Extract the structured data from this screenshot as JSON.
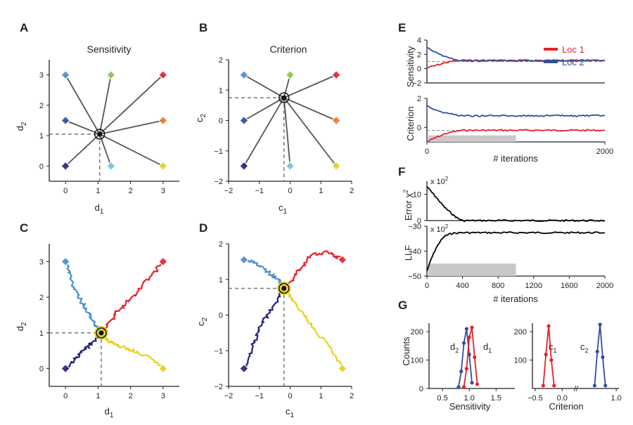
{
  "panels": {
    "A": {
      "letter": "A",
      "title": "Sensitivity",
      "xlabel": "d",
      "xsub": "1",
      "ylabel": "d",
      "ysub": "2"
    },
    "B": {
      "letter": "B",
      "title": "Criterion",
      "xlabel": "c",
      "xsub": "1",
      "ylabel": "c",
      "ysub": "2"
    },
    "C": {
      "letter": "C",
      "xlabel": "d",
      "xsub": "1",
      "ylabel": "d",
      "ysub": "2"
    },
    "D": {
      "letter": "D",
      "xlabel": "c",
      "xsub": "1",
      "ylabel": "c",
      "ysub": "2"
    },
    "E": {
      "letter": "E",
      "ylabel_top": "Sensitivity",
      "ylabel_bottom": "Criterion",
      "xlabel": "# iterations"
    },
    "F": {
      "letter": "F",
      "ylabel_top": "Error χ",
      "ylabel_top_sup": "2",
      "ylabel_bottom": "LLF",
      "scale_top": "x 10",
      "scale_top_exp": "2",
      "scale_bottom": "x 10",
      "scale_bottom_exp": "2",
      "xlabel": "# iterations"
    },
    "G": {
      "letter": "G",
      "ylabel": "Counts",
      "xlabel_left": "Sensitivity",
      "xlabel_right": "Criterion",
      "lab_d2": "d",
      "lab_d2_sub": "2",
      "lab_d1": "d",
      "lab_d1_sub": "1",
      "lab_c1": "c",
      "lab_c1_sub": "1",
      "lab_c2": "c",
      "lab_c2_sub": "2"
    }
  },
  "legend": [
    {
      "label": "Loc 1",
      "color": "#e8202a"
    },
    {
      "label": "Loc 2",
      "color": "#2d4fa0"
    }
  ],
  "colors": {
    "red": "#e8202a",
    "blue": "#2d4fa0",
    "navy": "#1f237a",
    "lightblue": "#4a90d0",
    "cyan": "#6ec8d8",
    "green": "#8cc84a",
    "orange": "#f07820",
    "yellow": "#e6d21a",
    "gray": "#555555",
    "shade": "#c8c8c8"
  },
  "chart_data": [
    {
      "id": "A",
      "type": "scatter",
      "title": "Sensitivity",
      "xlabel": "d1",
      "ylabel": "d2",
      "xlim": [
        -0.5,
        3.5
      ],
      "ylim": [
        -0.5,
        3.5
      ],
      "xticks": [
        "0",
        "1",
        "2",
        "3"
      ],
      "yticks": [
        "0",
        "1",
        "2",
        "3"
      ],
      "center": [
        1.05,
        1.05
      ],
      "points": [
        {
          "x": 0,
          "y": 3,
          "color": "lightblue"
        },
        {
          "x": 1.4,
          "y": 3,
          "color": "green"
        },
        {
          "x": 3,
          "y": 3,
          "color": "red"
        },
        {
          "x": 0,
          "y": 1.5,
          "color": "blue"
        },
        {
          "x": 3,
          "y": 1.5,
          "color": "orange"
        },
        {
          "x": 0,
          "y": 0,
          "color": "navy"
        },
        {
          "x": 1.4,
          "y": 0,
          "color": "cyan"
        },
        {
          "x": 3,
          "y": 0,
          "color": "yellow"
        }
      ]
    },
    {
      "id": "B",
      "type": "scatter",
      "title": "Criterion",
      "xlabel": "c1",
      "ylabel": "c2",
      "xlim": [
        -2,
        2
      ],
      "ylim": [
        -2,
        2
      ],
      "xticks": [
        "−2",
        "−1",
        "0",
        "1",
        "2"
      ],
      "yticks": [
        "−2",
        "−1",
        "0",
        "1",
        "2"
      ],
      "center": [
        -0.2,
        0.75
      ],
      "points": [
        {
          "x": -1.5,
          "y": 1.5,
          "color": "lightblue"
        },
        {
          "x": 0,
          "y": 1.5,
          "color": "green"
        },
        {
          "x": 1.5,
          "y": 1.5,
          "color": "red"
        },
        {
          "x": -1.5,
          "y": 0,
          "color": "blue"
        },
        {
          "x": 1.5,
          "y": 0,
          "color": "orange"
        },
        {
          "x": -1.5,
          "y": -1.5,
          "color": "navy"
        },
        {
          "x": 0,
          "y": -1.5,
          "color": "cyan"
        },
        {
          "x": 1.5,
          "y": -1.5,
          "color": "yellow"
        }
      ]
    },
    {
      "id": "C",
      "type": "line",
      "xlabel": "d1",
      "ylabel": "d2",
      "xlim": [
        -0.5,
        3.5
      ],
      "ylim": [
        -0.5,
        3.5
      ],
      "xticks": [
        "0",
        "1",
        "2",
        "3"
      ],
      "yticks": [
        "0",
        "1",
        "2",
        "3"
      ],
      "center": [
        1.1,
        1.0
      ],
      "series": [
        {
          "color": "lightblue",
          "x": [
            0,
            0.2,
            0.45,
            0.7,
            0.9,
            1.1
          ],
          "y": [
            3,
            2.4,
            1.95,
            1.55,
            1.25,
            1.0
          ]
        },
        {
          "color": "red",
          "x": [
            3,
            2.5,
            2.0,
            1.6,
            1.3,
            1.1
          ],
          "y": [
            3,
            2.45,
            1.95,
            1.6,
            1.25,
            1.0
          ]
        },
        {
          "color": "navy",
          "x": [
            0,
            0.3,
            0.6,
            0.85,
            1.1
          ],
          "y": [
            0,
            0.3,
            0.55,
            0.75,
            1.0
          ]
        },
        {
          "color": "yellow",
          "x": [
            3,
            2.6,
            2.1,
            1.6,
            1.3,
            1.1
          ],
          "y": [
            0,
            0.3,
            0.5,
            0.65,
            0.8,
            1.0
          ]
        }
      ]
    },
    {
      "id": "D",
      "type": "line",
      "xlabel": "c1",
      "ylabel": "c2",
      "xlim": [
        -2,
        2
      ],
      "ylim": [
        -2,
        2
      ],
      "xticks": [
        "−2",
        "−1",
        "0",
        "1",
        "2"
      ],
      "yticks": [
        "−2",
        "−1",
        "0",
        "1",
        "2"
      ],
      "center": [
        -0.2,
        0.75
      ],
      "series": [
        {
          "color": "lightblue",
          "x": [
            -1.5,
            -1.1,
            -0.7,
            -0.4,
            -0.2
          ],
          "y": [
            1.55,
            1.45,
            1.2,
            1.0,
            0.75
          ]
        },
        {
          "color": "red",
          "x": [
            1.7,
            1.2,
            0.7,
            0.3,
            -0.2
          ],
          "y": [
            1.55,
            1.75,
            1.7,
            1.25,
            0.75
          ]
        },
        {
          "color": "navy",
          "x": [
            -1.5,
            -1.2,
            -0.9,
            -0.5,
            -0.2
          ],
          "y": [
            -1.5,
            -0.8,
            -0.2,
            0.3,
            0.75
          ]
        },
        {
          "color": "yellow",
          "x": [
            1.7,
            1.2,
            0.7,
            0.2,
            -0.2
          ],
          "y": [
            -1.5,
            -0.8,
            -0.3,
            0.3,
            0.75
          ]
        }
      ]
    },
    {
      "id": "E-top",
      "type": "line",
      "ylabel": "Sensitivity",
      "xlim": [
        0,
        2000
      ],
      "ylim": [
        -2,
        4
      ],
      "yticks": [
        "−2",
        "0",
        "2",
        "4"
      ],
      "reference": 1.0,
      "series": [
        {
          "name": "Loc 1",
          "color": "red",
          "x": [
            0,
            100,
            200,
            300,
            400,
            2000
          ],
          "y": [
            0.1,
            0.45,
            0.8,
            1.05,
            1.15,
            1.15
          ]
        },
        {
          "name": "Loc 2",
          "color": "blue",
          "x": [
            0,
            100,
            200,
            300,
            400,
            2000
          ],
          "y": [
            3.0,
            2.3,
            1.7,
            1.3,
            1.1,
            1.1
          ]
        }
      ]
    },
    {
      "id": "E-bottom",
      "type": "line",
      "ylabel": "Criterion",
      "xlabel": "# iterations",
      "xlim": [
        0,
        2000
      ],
      "ylim": [
        -1,
        2
      ],
      "yticks": [
        "0",
        "2"
      ],
      "xticks": [
        "0",
        "2000"
      ],
      "reference": -0.2,
      "series": [
        {
          "name": "Loc 1",
          "color": "red",
          "x": [
            0,
            100,
            200,
            300,
            400,
            2000
          ],
          "y": [
            -1.0,
            -0.7,
            -0.45,
            -0.3,
            -0.2,
            -0.2
          ]
        },
        {
          "name": "Loc 2",
          "color": "blue",
          "x": [
            0,
            100,
            200,
            400,
            2000
          ],
          "y": [
            1.5,
            1.2,
            1.0,
            0.8,
            0.8
          ]
        }
      ],
      "shaded_until": 1000
    },
    {
      "id": "F-top",
      "type": "line",
      "ylabel": "Error χ²",
      "xlim": [
        0,
        2000
      ],
      "ylim": [
        0,
        15
      ],
      "yticks": [
        "0",
        "10"
      ],
      "series": [
        {
          "color": "black",
          "x": [
            0,
            50,
            100,
            150,
            200,
            250,
            300,
            350,
            400,
            2000
          ],
          "y": [
            13,
            11,
            9,
            7,
            5,
            3.5,
            2,
            0.8,
            0,
            0
          ]
        }
      ]
    },
    {
      "id": "F-bottom",
      "type": "line",
      "ylabel": "LLF",
      "xlabel": "# iterations",
      "xlim": [
        0,
        2000
      ],
      "ylim": [
        -50,
        -30
      ],
      "yticks": [
        "−50",
        "−40",
        "−30"
      ],
      "xticks": [
        "0",
        "400",
        "800",
        "1200",
        "1600",
        "2000"
      ],
      "series": [
        {
          "color": "black",
          "x": [
            0,
            50,
            100,
            150,
            200,
            250,
            300,
            400,
            2000
          ],
          "y": [
            -48,
            -43,
            -39,
            -36,
            -34,
            -33.2,
            -32.8,
            -32.6,
            -32.6
          ]
        }
      ],
      "shaded_until": 1000
    },
    {
      "id": "G-left",
      "type": "line",
      "ylabel": "Counts",
      "xlabel": "Sensitivity",
      "xlim": [
        0.25,
        1.85
      ],
      "ylim": [
        0,
        230
      ],
      "xticks": [
        "0.5",
        "1.0",
        "1.5"
      ],
      "yticks": [
        "0",
        "100",
        "200"
      ],
      "series": [
        {
          "name": "d2",
          "color": "blue",
          "x": [
            0.8,
            0.85,
            0.9,
            0.95,
            1.0,
            1.05
          ],
          "y": [
            5,
            60,
            160,
            210,
            120,
            20
          ]
        },
        {
          "name": "d1",
          "color": "red",
          "x": [
            0.9,
            0.95,
            1.0,
            1.05,
            1.1,
            1.15
          ],
          "y": [
            5,
            70,
            180,
            215,
            110,
            15
          ]
        }
      ]
    },
    {
      "id": "G-right",
      "type": "line",
      "xlabel": "Criterion",
      "xlim": [
        -0.55,
        1.05
      ],
      "ylim": [
        0,
        230
      ],
      "xticks": [
        "−0.5",
        "0.0",
        "1.0"
      ],
      "yticks": [
        "100",
        "200"
      ],
      "series": [
        {
          "name": "c1",
          "color": "red",
          "x": [
            -0.35,
            -0.3,
            -0.25,
            -0.2,
            -0.15
          ],
          "y": [
            10,
            120,
            220,
            100,
            10
          ]
        },
        {
          "name": "c2",
          "color": "blue",
          "x": [
            0.6,
            0.65,
            0.7,
            0.75,
            0.8
          ],
          "y": [
            10,
            130,
            225,
            110,
            10
          ]
        }
      ]
    }
  ]
}
